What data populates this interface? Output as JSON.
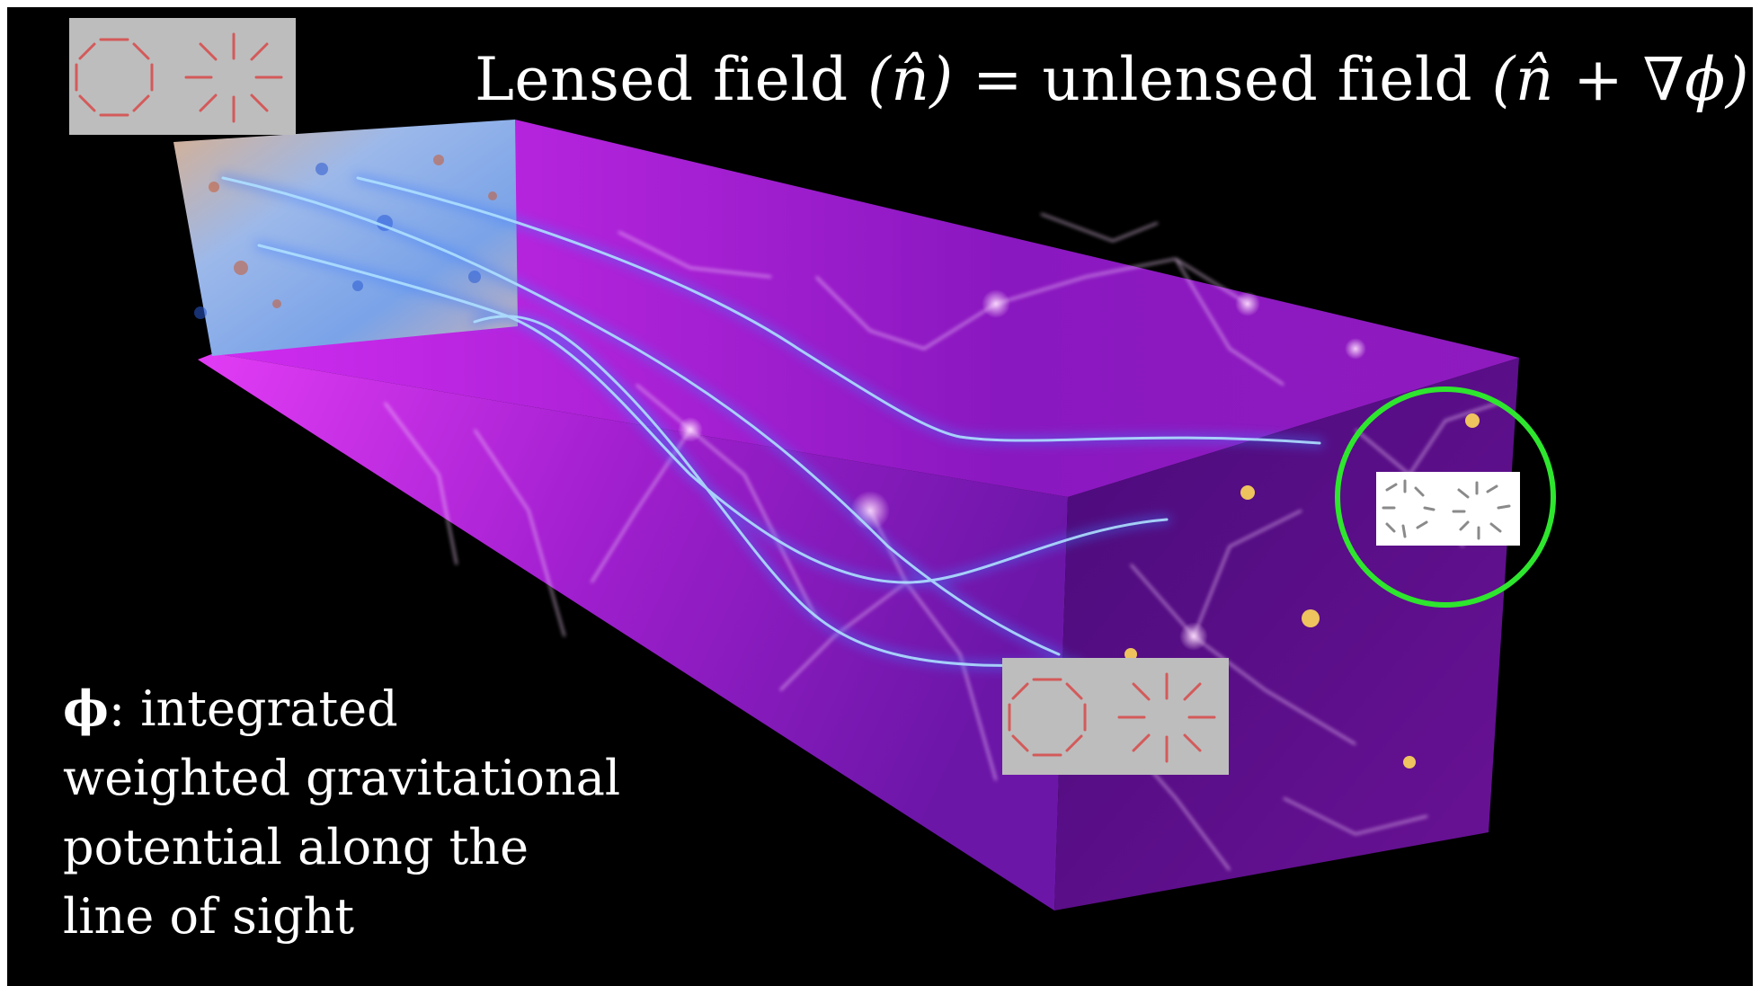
{
  "title": {
    "lhs_text": "Lensed field",
    "lhs_arg": "(n̂)",
    "equals": "=",
    "rhs_text": "unlensed field",
    "rhs_arg": "(n̂ + ∇ϕ)"
  },
  "caption": {
    "symbol": "ϕ",
    "line1": ": integrated",
    "line2": "weighted gravitational",
    "line3": "potential along the",
    "line4": "line of sight"
  },
  "colors": {
    "background": "#000000",
    "box_magenta": "#b020e0",
    "light_ray": "#6fc8ff",
    "patch_gray": "#bdbdbd",
    "stick_red": "#d45a5a",
    "ring_green": "#2ee62e"
  },
  "icons": [
    "ring-pattern-icon",
    "radial-pattern-icon",
    "lensed-pattern-icon",
    "cmb-map",
    "cosmic-web-box",
    "green-circle"
  ]
}
